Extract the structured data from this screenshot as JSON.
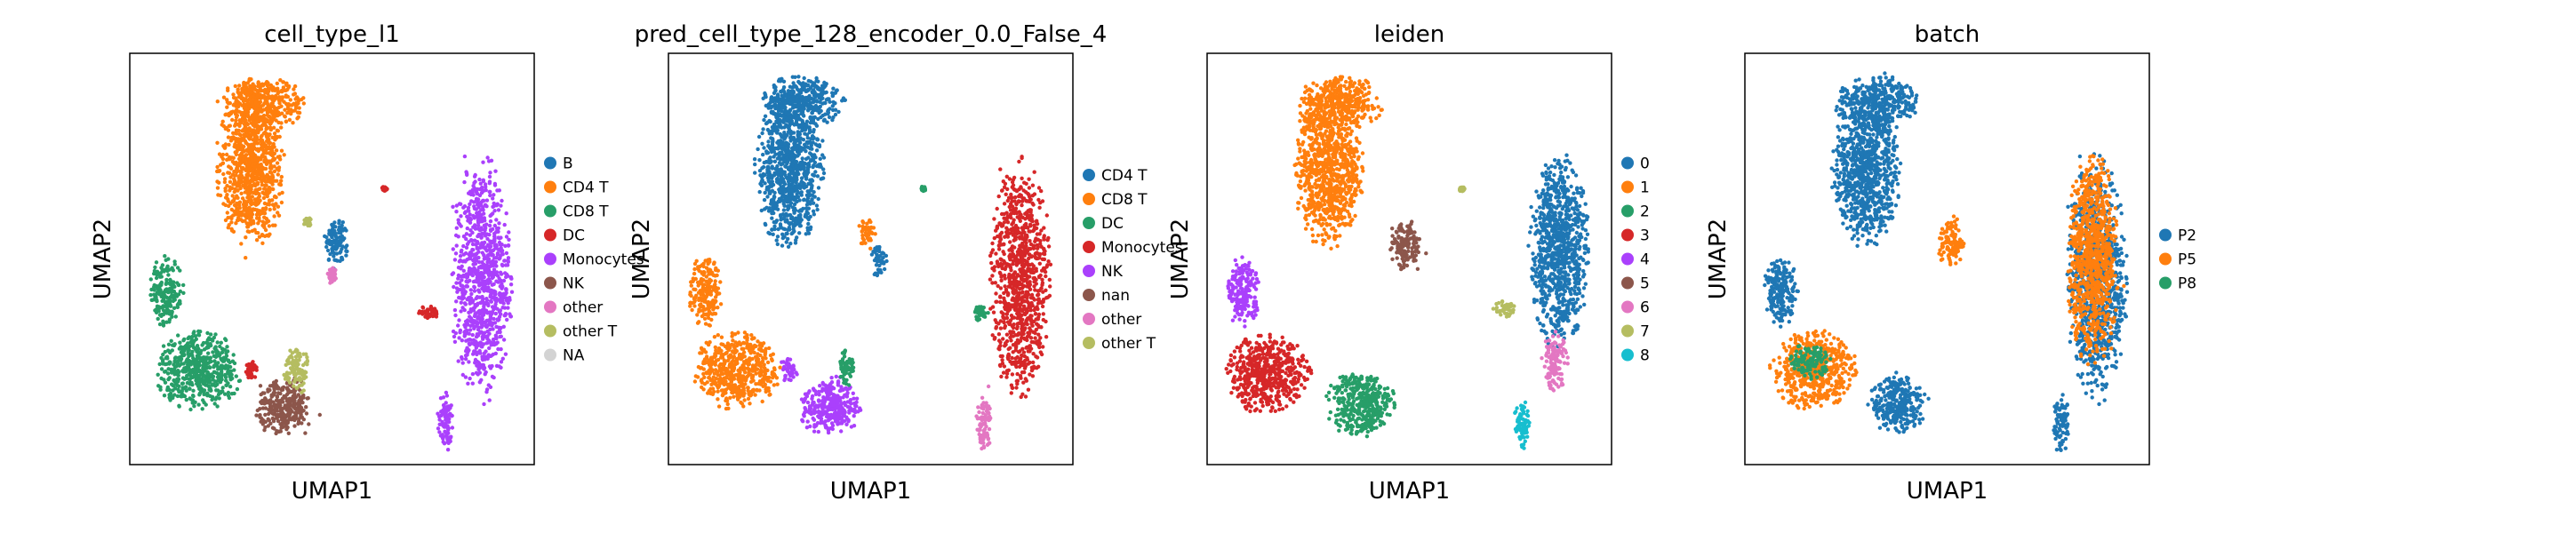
{
  "chart_data": [
    {
      "type": "scatter",
      "title": "cell_type_l1",
      "xlabel": "UMAP1",
      "ylabel": "UMAP2",
      "grid": false,
      "legend_placement": "right-outside",
      "legend": [
        {
          "label": "B",
          "color": "#1f77b4"
        },
        {
          "label": "CD4 T",
          "color": "#ff7f0e"
        },
        {
          "label": "CD8 T",
          "color": "#279e68"
        },
        {
          "label": "DC",
          "color": "#d62728"
        },
        {
          "label": "Monocytes",
          "color": "#aa40fc"
        },
        {
          "label": "NK",
          "color": "#8c564b"
        },
        {
          "label": "other",
          "color": "#e377c2"
        },
        {
          "label": "other T",
          "color": "#b5bd61"
        },
        {
          "label": "NA",
          "color": "#d3d3d3"
        }
      ],
      "clusters": [
        {
          "label": "CD4 T",
          "x": 0.3,
          "y": 0.72,
          "rx": 0.08,
          "ry": 0.18
        },
        {
          "label": "CD4 T",
          "x": 0.33,
          "y": 0.88,
          "rx": 0.1,
          "ry": 0.06
        },
        {
          "label": "B",
          "x": 0.51,
          "y": 0.54,
          "rx": 0.03,
          "ry": 0.06
        },
        {
          "label": "Monocytes",
          "x": 0.87,
          "y": 0.45,
          "rx": 0.07,
          "ry": 0.28
        },
        {
          "label": "Monocytes",
          "x": 0.78,
          "y": 0.1,
          "rx": 0.02,
          "ry": 0.07
        },
        {
          "label": "DC",
          "x": 0.74,
          "y": 0.37,
          "rx": 0.025,
          "ry": 0.02
        },
        {
          "label": "CD8 T",
          "x": 0.09,
          "y": 0.42,
          "rx": 0.04,
          "ry": 0.08
        },
        {
          "label": "CD8 T",
          "x": 0.17,
          "y": 0.23,
          "rx": 0.1,
          "ry": 0.09
        },
        {
          "label": "NK",
          "x": 0.38,
          "y": 0.14,
          "rx": 0.07,
          "ry": 0.07
        },
        {
          "label": "other T",
          "x": 0.41,
          "y": 0.23,
          "rx": 0.03,
          "ry": 0.06
        },
        {
          "label": "DC",
          "x": 0.3,
          "y": 0.23,
          "rx": 0.015,
          "ry": 0.02
        },
        {
          "label": "other",
          "x": 0.5,
          "y": 0.46,
          "rx": 0.01,
          "ry": 0.02
        },
        {
          "label": "DC",
          "x": 0.63,
          "y": 0.67,
          "rx": 0.006,
          "ry": 0.006
        },
        {
          "label": "other T",
          "x": 0.44,
          "y": 0.59,
          "rx": 0.01,
          "ry": 0.01
        }
      ]
    },
    {
      "type": "scatter",
      "title": "pred_cell_type_128_encoder_0.0_False_4",
      "xlabel": "UMAP1",
      "ylabel": "UMAP2",
      "grid": false,
      "legend_placement": "right-outside",
      "legend": [
        {
          "label": "CD4 T",
          "color": "#1f77b4"
        },
        {
          "label": "CD8 T",
          "color": "#ff7f0e"
        },
        {
          "label": "DC",
          "color": "#279e68"
        },
        {
          "label": "Monocytes",
          "color": "#d62728"
        },
        {
          "label": "NK",
          "color": "#aa40fc"
        },
        {
          "label": "nan",
          "color": "#8c564b"
        },
        {
          "label": "other",
          "color": "#e377c2"
        },
        {
          "label": "other T",
          "color": "#b5bd61"
        }
      ],
      "clusters": [
        {
          "label": "CD4 T",
          "x": 0.3,
          "y": 0.72,
          "rx": 0.08,
          "ry": 0.18
        },
        {
          "label": "CD4 T",
          "x": 0.33,
          "y": 0.88,
          "rx": 0.1,
          "ry": 0.06
        },
        {
          "label": "CD8 T",
          "x": 0.49,
          "y": 0.56,
          "rx": 0.02,
          "ry": 0.04
        },
        {
          "label": "CD4 T",
          "x": 0.52,
          "y": 0.5,
          "rx": 0.02,
          "ry": 0.04
        },
        {
          "label": "Monocytes",
          "x": 0.87,
          "y": 0.45,
          "rx": 0.07,
          "ry": 0.28
        },
        {
          "label": "other",
          "x": 0.78,
          "y": 0.1,
          "rx": 0.02,
          "ry": 0.07
        },
        {
          "label": "DC",
          "x": 0.77,
          "y": 0.37,
          "rx": 0.02,
          "ry": 0.02
        },
        {
          "label": "CD8 T",
          "x": 0.09,
          "y": 0.42,
          "rx": 0.04,
          "ry": 0.08
        },
        {
          "label": "CD8 T",
          "x": 0.17,
          "y": 0.23,
          "rx": 0.1,
          "ry": 0.09
        },
        {
          "label": "NK",
          "x": 0.4,
          "y": 0.14,
          "rx": 0.07,
          "ry": 0.07
        },
        {
          "label": "NK",
          "x": 0.3,
          "y": 0.23,
          "rx": 0.02,
          "ry": 0.03
        },
        {
          "label": "DC",
          "x": 0.44,
          "y": 0.24,
          "rx": 0.02,
          "ry": 0.05
        },
        {
          "label": "DC",
          "x": 0.63,
          "y": 0.67,
          "rx": 0.006,
          "ry": 0.006
        }
      ]
    },
    {
      "type": "scatter",
      "title": "leiden",
      "xlabel": "UMAP1",
      "ylabel": "UMAP2",
      "grid": false,
      "legend_placement": "right-outside",
      "legend": [
        {
          "label": "0",
          "color": "#1f77b4"
        },
        {
          "label": "1",
          "color": "#ff7f0e"
        },
        {
          "label": "2",
          "color": "#279e68"
        },
        {
          "label": "3",
          "color": "#d62728"
        },
        {
          "label": "4",
          "color": "#aa40fc"
        },
        {
          "label": "5",
          "color": "#8c564b"
        },
        {
          "label": "6",
          "color": "#e377c2"
        },
        {
          "label": "7",
          "color": "#b5bd61"
        },
        {
          "label": "8",
          "color": "#17becf"
        }
      ],
      "clusters": [
        {
          "label": "1",
          "x": 0.3,
          "y": 0.72,
          "rx": 0.08,
          "ry": 0.18
        },
        {
          "label": "1",
          "x": 0.33,
          "y": 0.88,
          "rx": 0.1,
          "ry": 0.06
        },
        {
          "label": "5",
          "x": 0.49,
          "y": 0.53,
          "rx": 0.04,
          "ry": 0.06
        },
        {
          "label": "0",
          "x": 0.87,
          "y": 0.52,
          "rx": 0.07,
          "ry": 0.22
        },
        {
          "label": "6",
          "x": 0.86,
          "y": 0.25,
          "rx": 0.03,
          "ry": 0.07
        },
        {
          "label": "8",
          "x": 0.78,
          "y": 0.1,
          "rx": 0.02,
          "ry": 0.06
        },
        {
          "label": "7",
          "x": 0.74,
          "y": 0.38,
          "rx": 0.03,
          "ry": 0.02
        },
        {
          "label": "4",
          "x": 0.09,
          "y": 0.42,
          "rx": 0.04,
          "ry": 0.08
        },
        {
          "label": "3",
          "x": 0.15,
          "y": 0.22,
          "rx": 0.1,
          "ry": 0.09
        },
        {
          "label": "2",
          "x": 0.38,
          "y": 0.15,
          "rx": 0.08,
          "ry": 0.08
        },
        {
          "label": "7",
          "x": 0.63,
          "y": 0.67,
          "rx": 0.006,
          "ry": 0.006
        }
      ]
    },
    {
      "type": "scatter",
      "title": "batch",
      "xlabel": "UMAP1",
      "ylabel": "UMAP2",
      "grid": false,
      "legend_placement": "right-outside",
      "legend": [
        {
          "label": "P2",
          "color": "#1f77b4"
        },
        {
          "label": "P5",
          "color": "#ff7f0e"
        },
        {
          "label": "P8",
          "color": "#279e68"
        }
      ],
      "clusters": [
        {
          "label": "P2",
          "x": 0.3,
          "y": 0.72,
          "rx": 0.08,
          "ry": 0.18
        },
        {
          "label": "P2",
          "x": 0.33,
          "y": 0.88,
          "rx": 0.1,
          "ry": 0.06
        },
        {
          "label": "P5",
          "x": 0.51,
          "y": 0.54,
          "rx": 0.03,
          "ry": 0.06
        },
        {
          "label": "P2",
          "x": 0.87,
          "y": 0.45,
          "rx": 0.07,
          "ry": 0.28
        },
        {
          "label": "P5",
          "x": 0.86,
          "y": 0.5,
          "rx": 0.06,
          "ry": 0.24
        },
        {
          "label": "P2",
          "x": 0.78,
          "y": 0.1,
          "rx": 0.02,
          "ry": 0.07
        },
        {
          "label": "P2",
          "x": 0.09,
          "y": 0.42,
          "rx": 0.04,
          "ry": 0.08
        },
        {
          "label": "P5",
          "x": 0.17,
          "y": 0.23,
          "rx": 0.1,
          "ry": 0.09
        },
        {
          "label": "P2",
          "x": 0.38,
          "y": 0.15,
          "rx": 0.07,
          "ry": 0.07
        },
        {
          "label": "P8",
          "x": 0.16,
          "y": 0.25,
          "rx": 0.05,
          "ry": 0.04
        }
      ]
    }
  ]
}
